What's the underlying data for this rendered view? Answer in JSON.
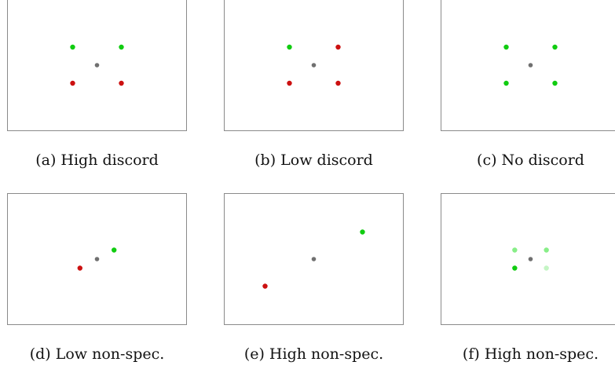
{
  "colors": {
    "agree": "#11cc11",
    "disagree": "#cc1111",
    "center": "#707070",
    "agree_faint": "#88ee88",
    "agree_fainter": "#c4f5c4"
  },
  "panels": [
    {
      "caption": "(a) High discord",
      "points": [
        {
          "x": -1,
          "y": 1,
          "color": "agree"
        },
        {
          "x": 1,
          "y": 1,
          "color": "agree"
        },
        {
          "x": -1,
          "y": -1,
          "color": "disagree"
        },
        {
          "x": 1,
          "y": -1,
          "color": "disagree"
        },
        {
          "x": 0,
          "y": 0,
          "color": "center"
        }
      ]
    },
    {
      "caption": "(b) Low discord",
      "points": [
        {
          "x": -1,
          "y": 1,
          "color": "agree"
        },
        {
          "x": 1,
          "y": 1,
          "color": "disagree"
        },
        {
          "x": -1,
          "y": -1,
          "color": "disagree"
        },
        {
          "x": 1,
          "y": -1,
          "color": "disagree"
        },
        {
          "x": 0,
          "y": 0,
          "color": "center"
        }
      ]
    },
    {
      "caption": "(c) No discord",
      "points": [
        {
          "x": -1,
          "y": 1,
          "color": "agree"
        },
        {
          "x": 1,
          "y": 1,
          "color": "agree"
        },
        {
          "x": -1,
          "y": -1,
          "color": "agree"
        },
        {
          "x": 1,
          "y": -1,
          "color": "agree"
        },
        {
          "x": 0,
          "y": 0,
          "color": "center"
        }
      ]
    },
    {
      "caption": "(d) Low non-spec.",
      "points": [
        {
          "x": 0.7,
          "y": 0.5,
          "color": "agree"
        },
        {
          "x": -0.7,
          "y": -0.5,
          "color": "disagree"
        },
        {
          "x": 0,
          "y": 0,
          "color": "center"
        }
      ]
    },
    {
      "caption": "(e) High non-spec.",
      "points": [
        {
          "x": 2,
          "y": 1.5,
          "color": "agree"
        },
        {
          "x": -2,
          "y": -1.5,
          "color": "disagree"
        },
        {
          "x": 0,
          "y": 0,
          "color": "center"
        }
      ]
    },
    {
      "caption": "(f) High non-spec.",
      "points": [
        {
          "x": -0.65,
          "y": 0.5,
          "color": "agree_faint"
        },
        {
          "x": 0.65,
          "y": 0.5,
          "color": "agree_faint"
        },
        {
          "x": -0.65,
          "y": -0.5,
          "color": "agree"
        },
        {
          "x": 0.65,
          "y": -0.5,
          "color": "agree_fainter"
        },
        {
          "x": 0,
          "y": 0,
          "color": "center"
        }
      ]
    }
  ]
}
